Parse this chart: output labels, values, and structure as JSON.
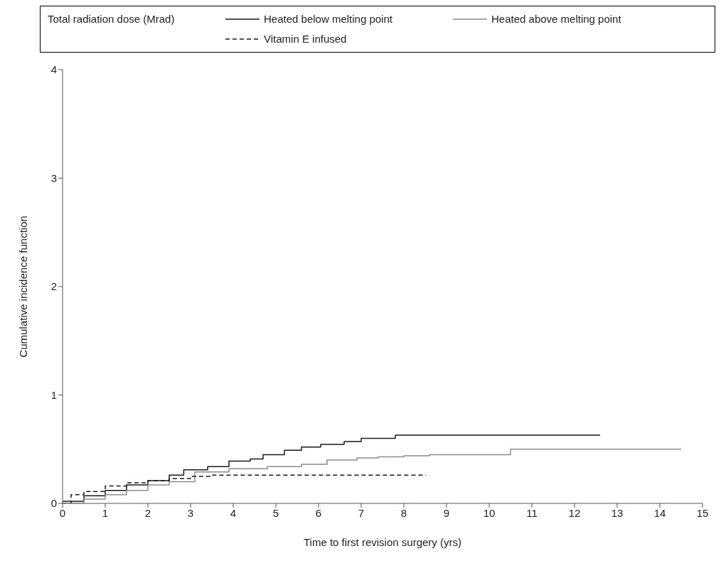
{
  "chart_data": {
    "type": "step",
    "xlabel": "Time to first revision surgery (yrs)",
    "ylabel": "Cumulative incidence function",
    "legend_title": "Total radiation dose (Mrad)",
    "legend": "top",
    "marker": "none",
    "xlim": [
      0,
      15
    ],
    "ylim": [
      0,
      4
    ],
    "xticks": [
      0,
      1,
      2,
      3,
      4,
      5,
      6,
      7,
      8,
      9,
      10,
      11,
      12,
      13,
      14,
      15
    ],
    "yticks": [
      0,
      1,
      2,
      3,
      4
    ],
    "series": [
      {
        "name": "Heated below melting point",
        "color": "#1a1a1a",
        "line_style": "solid",
        "x": [
          0,
          0.5,
          1,
          1.5,
          2,
          2.5,
          2.84,
          3.4,
          3.9,
          4.4,
          4.7,
          5.2,
          5.6,
          6.05,
          6.6,
          7.0,
          7.8,
          12.6
        ],
        "values": [
          0.02,
          0.07,
          0.12,
          0.17,
          0.21,
          0.26,
          0.31,
          0.34,
          0.39,
          0.41,
          0.45,
          0.49,
          0.52,
          0.545,
          0.57,
          0.6,
          0.63,
          0.63
        ]
      },
      {
        "name": "Heated above melting point",
        "color": "#8c8c8c",
        "line_style": "solid",
        "x": [
          0,
          0.5,
          1,
          1.5,
          2,
          2.5,
          3.1,
          3.9,
          4.8,
          5.6,
          6.2,
          6.9,
          7.4,
          8.0,
          8.6,
          10.5,
          14.5
        ],
        "values": [
          0,
          0.04,
          0.08,
          0.12,
          0.17,
          0.2,
          0.29,
          0.32,
          0.34,
          0.36,
          0.4,
          0.42,
          0.43,
          0.44,
          0.45,
          0.5,
          0.5
        ]
      },
      {
        "name": "Vitamin E infused",
        "color": "#1a1a1a",
        "line_style": "dashed",
        "x": [
          0,
          0.2,
          0.5,
          1,
          1.5,
          2,
          2.5,
          3,
          3.5,
          8.52
        ],
        "values": [
          0,
          0.08,
          0.11,
          0.16,
          0.19,
          0.21,
          0.23,
          0.25,
          0.26,
          0.26
        ]
      }
    ]
  }
}
